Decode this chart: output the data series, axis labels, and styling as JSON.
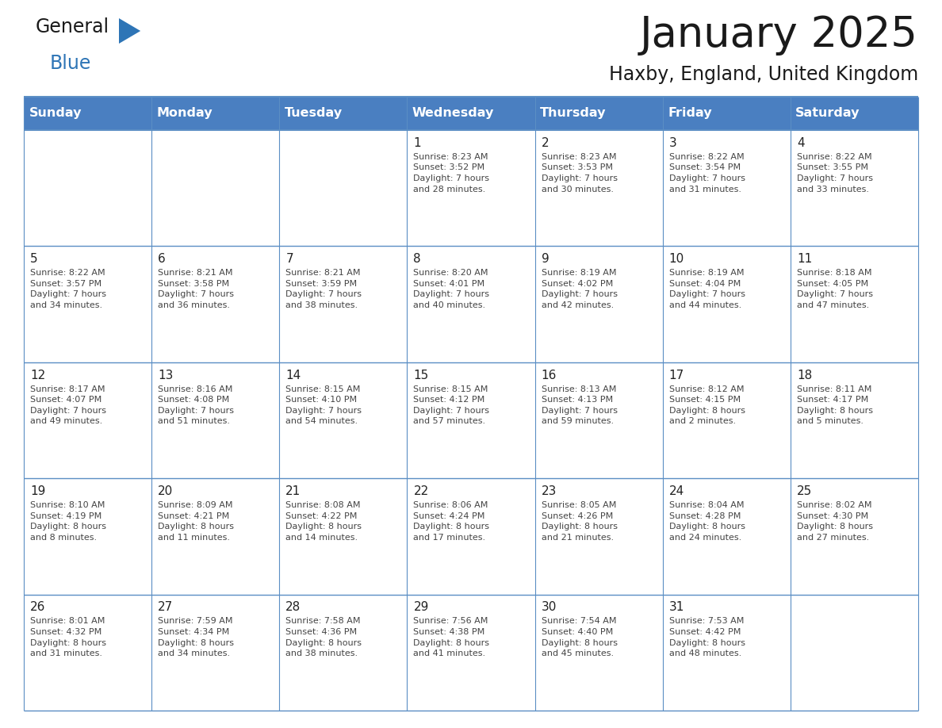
{
  "title": "January 2025",
  "subtitle": "Haxby, England, United Kingdom",
  "days_of_week": [
    "Sunday",
    "Monday",
    "Tuesday",
    "Wednesday",
    "Thursday",
    "Friday",
    "Saturday"
  ],
  "header_bg": "#4a7fc1",
  "header_text": "#FFFFFF",
  "cell_bg_white": "#FFFFFF",
  "cell_bg_gray": "#f5f5f5",
  "border_color": "#5b8ec4",
  "title_color": "#1a1a1a",
  "subtitle_color": "#1a1a1a",
  "cell_text_color": "#444444",
  "day_number_color": "#222222",
  "logo_general_color": "#1a1a1a",
  "logo_blue_color": "#2E75B6",
  "calendar": [
    [
      {
        "day": null,
        "text": ""
      },
      {
        "day": null,
        "text": ""
      },
      {
        "day": null,
        "text": ""
      },
      {
        "day": 1,
        "text": "Sunrise: 8:23 AM\nSunset: 3:52 PM\nDaylight: 7 hours\nand 28 minutes."
      },
      {
        "day": 2,
        "text": "Sunrise: 8:23 AM\nSunset: 3:53 PM\nDaylight: 7 hours\nand 30 minutes."
      },
      {
        "day": 3,
        "text": "Sunrise: 8:22 AM\nSunset: 3:54 PM\nDaylight: 7 hours\nand 31 minutes."
      },
      {
        "day": 4,
        "text": "Sunrise: 8:22 AM\nSunset: 3:55 PM\nDaylight: 7 hours\nand 33 minutes."
      }
    ],
    [
      {
        "day": 5,
        "text": "Sunrise: 8:22 AM\nSunset: 3:57 PM\nDaylight: 7 hours\nand 34 minutes."
      },
      {
        "day": 6,
        "text": "Sunrise: 8:21 AM\nSunset: 3:58 PM\nDaylight: 7 hours\nand 36 minutes."
      },
      {
        "day": 7,
        "text": "Sunrise: 8:21 AM\nSunset: 3:59 PM\nDaylight: 7 hours\nand 38 minutes."
      },
      {
        "day": 8,
        "text": "Sunrise: 8:20 AM\nSunset: 4:01 PM\nDaylight: 7 hours\nand 40 minutes."
      },
      {
        "day": 9,
        "text": "Sunrise: 8:19 AM\nSunset: 4:02 PM\nDaylight: 7 hours\nand 42 minutes."
      },
      {
        "day": 10,
        "text": "Sunrise: 8:19 AM\nSunset: 4:04 PM\nDaylight: 7 hours\nand 44 minutes."
      },
      {
        "day": 11,
        "text": "Sunrise: 8:18 AM\nSunset: 4:05 PM\nDaylight: 7 hours\nand 47 minutes."
      }
    ],
    [
      {
        "day": 12,
        "text": "Sunrise: 8:17 AM\nSunset: 4:07 PM\nDaylight: 7 hours\nand 49 minutes."
      },
      {
        "day": 13,
        "text": "Sunrise: 8:16 AM\nSunset: 4:08 PM\nDaylight: 7 hours\nand 51 minutes."
      },
      {
        "day": 14,
        "text": "Sunrise: 8:15 AM\nSunset: 4:10 PM\nDaylight: 7 hours\nand 54 minutes."
      },
      {
        "day": 15,
        "text": "Sunrise: 8:15 AM\nSunset: 4:12 PM\nDaylight: 7 hours\nand 57 minutes."
      },
      {
        "day": 16,
        "text": "Sunrise: 8:13 AM\nSunset: 4:13 PM\nDaylight: 7 hours\nand 59 minutes."
      },
      {
        "day": 17,
        "text": "Sunrise: 8:12 AM\nSunset: 4:15 PM\nDaylight: 8 hours\nand 2 minutes."
      },
      {
        "day": 18,
        "text": "Sunrise: 8:11 AM\nSunset: 4:17 PM\nDaylight: 8 hours\nand 5 minutes."
      }
    ],
    [
      {
        "day": 19,
        "text": "Sunrise: 8:10 AM\nSunset: 4:19 PM\nDaylight: 8 hours\nand 8 minutes."
      },
      {
        "day": 20,
        "text": "Sunrise: 8:09 AM\nSunset: 4:21 PM\nDaylight: 8 hours\nand 11 minutes."
      },
      {
        "day": 21,
        "text": "Sunrise: 8:08 AM\nSunset: 4:22 PM\nDaylight: 8 hours\nand 14 minutes."
      },
      {
        "day": 22,
        "text": "Sunrise: 8:06 AM\nSunset: 4:24 PM\nDaylight: 8 hours\nand 17 minutes."
      },
      {
        "day": 23,
        "text": "Sunrise: 8:05 AM\nSunset: 4:26 PM\nDaylight: 8 hours\nand 21 minutes."
      },
      {
        "day": 24,
        "text": "Sunrise: 8:04 AM\nSunset: 4:28 PM\nDaylight: 8 hours\nand 24 minutes."
      },
      {
        "day": 25,
        "text": "Sunrise: 8:02 AM\nSunset: 4:30 PM\nDaylight: 8 hours\nand 27 minutes."
      }
    ],
    [
      {
        "day": 26,
        "text": "Sunrise: 8:01 AM\nSunset: 4:32 PM\nDaylight: 8 hours\nand 31 minutes."
      },
      {
        "day": 27,
        "text": "Sunrise: 7:59 AM\nSunset: 4:34 PM\nDaylight: 8 hours\nand 34 minutes."
      },
      {
        "day": 28,
        "text": "Sunrise: 7:58 AM\nSunset: 4:36 PM\nDaylight: 8 hours\nand 38 minutes."
      },
      {
        "day": 29,
        "text": "Sunrise: 7:56 AM\nSunset: 4:38 PM\nDaylight: 8 hours\nand 41 minutes."
      },
      {
        "day": 30,
        "text": "Sunrise: 7:54 AM\nSunset: 4:40 PM\nDaylight: 8 hours\nand 45 minutes."
      },
      {
        "day": 31,
        "text": "Sunrise: 7:53 AM\nSunset: 4:42 PM\nDaylight: 8 hours\nand 48 minutes."
      },
      {
        "day": null,
        "text": ""
      }
    ]
  ]
}
